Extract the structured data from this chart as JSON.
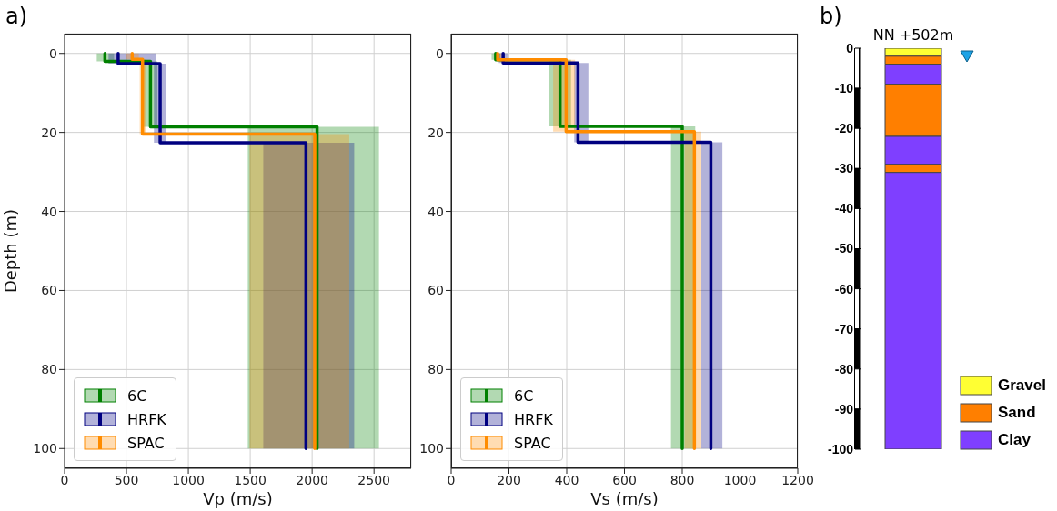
{
  "chart_data": [
    {
      "type": "line",
      "orientation": "horizontal",
      "xlabel": "Vp (m/s)",
      "ylabel": "Depth (m)",
      "annotations": [
        "a)"
      ],
      "xlim": [
        0,
        2800
      ],
      "xticks": [
        0,
        500,
        1000,
        1500,
        2000,
        2500
      ],
      "ylim": [
        105,
        -5
      ],
      "yticks": [
        0,
        20,
        40,
        60,
        80,
        100
      ],
      "grid": true,
      "legend": "bottom left",
      "series": [
        {
          "name": "6C",
          "color": "#008000",
          "x": [
            0,
            2.0,
            2.0,
            18.6,
            18.6,
            100
          ],
          "values": [
            326,
            326,
            694,
            694,
            2040,
            2040
          ],
          "lower": [
            260,
            260,
            640,
            640,
            1480,
            1480
          ],
          "upper": [
            400,
            400,
            750,
            750,
            2540,
            2540
          ]
        },
        {
          "name": "HRFK",
          "color": "#000080",
          "x": [
            0,
            2.6,
            2.6,
            22.6,
            22.6,
            100
          ],
          "values": [
            433,
            433,
            772,
            772,
            1950,
            1950
          ],
          "lower": [
            355,
            355,
            722,
            722,
            1605,
            1605
          ],
          "upper": [
            735,
            735,
            816,
            816,
            2340,
            2340
          ]
        },
        {
          "name": "SPAC",
          "color": "#ff8c00",
          "x": [
            0,
            1.5,
            1.5,
            20.4,
            20.4,
            100
          ],
          "values": [
            546,
            546,
            630,
            630,
            2021,
            2021
          ],
          "lower": [
            500,
            500,
            607,
            607,
            1495,
            1495
          ],
          "upper": [
            600,
            600,
            660,
            660,
            2300,
            2300
          ]
        }
      ]
    },
    {
      "type": "line",
      "orientation": "horizontal",
      "xlabel": "Vs (m/s)",
      "xlim": [
        0,
        1200
      ],
      "xticks": [
        0,
        200,
        400,
        600,
        800,
        1000,
        1200
      ],
      "ylim": [
        105,
        -5
      ],
      "yticks": [
        0,
        20,
        40,
        60,
        80,
        100
      ],
      "grid": true,
      "legend": "bottom left",
      "series": [
        {
          "name": "6C",
          "color": "#008000",
          "x": [
            0,
            1.6,
            1.6,
            18.5,
            18.5,
            100
          ],
          "values": [
            154,
            154,
            377,
            377,
            800,
            800
          ],
          "lower": [
            140,
            140,
            339,
            339,
            761,
            761
          ],
          "upper": [
            170,
            170,
            415,
            415,
            845,
            845
          ]
        },
        {
          "name": "HRFK",
          "color": "#000080",
          "x": [
            0,
            2.4,
            2.4,
            22.5,
            22.5,
            100
          ],
          "values": [
            180,
            180,
            439,
            439,
            899,
            899
          ],
          "lower": [
            165,
            165,
            426,
            426,
            866,
            866
          ],
          "upper": [
            195,
            195,
            475,
            475,
            939,
            939
          ]
        },
        {
          "name": "SPAC",
          "color": "#ff8c00",
          "x": [
            0,
            1.6,
            1.6,
            19.8,
            19.8,
            100
          ],
          "values": [
            161,
            161,
            398,
            398,
            842,
            842
          ],
          "lower": [
            150,
            150,
            353,
            353,
            808,
            808
          ],
          "upper": [
            175,
            175,
            429,
            429,
            866,
            866
          ]
        }
      ]
    },
    {
      "type": "bar",
      "stacked": true,
      "title": "NN +502m",
      "annotations": [
        "b)"
      ],
      "categories": [
        null
      ],
      "ylim": [
        -100,
        0
      ],
      "yticks": [
        0,
        -10,
        -20,
        -30,
        -40,
        -50,
        -60,
        -70,
        -80,
        -90,
        -100
      ],
      "grid": false,
      "legend": "bottom right",
      "series": [
        {
          "name": "Gravel",
          "color": "#ffff33",
          "values": [
            -2
          ]
        },
        {
          "name": "Sand",
          "color": "#ff7f00",
          "values": [
            -2
          ]
        },
        {
          "name": "Clay",
          "color": "#7f3fff",
          "values": [
            -5
          ]
        },
        {
          "color": "#ff7f00",
          "values": [
            -13
          ]
        },
        {
          "color": "#7f3fff",
          "values": [
            -7
          ]
        },
        {
          "color": "#ff7f00",
          "values": [
            -2
          ]
        },
        {
          "color": "#7f3fff",
          "values": [
            -69
          ]
        }
      ]
    }
  ]
}
